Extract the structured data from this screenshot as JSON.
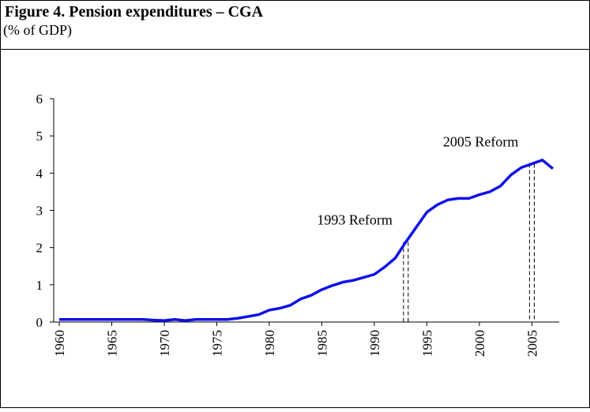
{
  "chart_data": {
    "type": "line",
    "title": "Figure 4. Pension expenditures – CGA",
    "subtitle": "(% of GDP)",
    "x": [
      1960,
      1961,
      1962,
      1963,
      1964,
      1965,
      1966,
      1967,
      1968,
      1969,
      1970,
      1971,
      1972,
      1973,
      1974,
      1975,
      1976,
      1977,
      1978,
      1979,
      1980,
      1981,
      1982,
      1983,
      1984,
      1985,
      1986,
      1987,
      1988,
      1989,
      1990,
      1991,
      1992,
      1993,
      1994,
      1995,
      1996,
      1997,
      1998,
      1999,
      2000,
      2001,
      2002,
      2003,
      2004,
      2005,
      2006,
      2007
    ],
    "series": [
      {
        "name": "Pension expenditures",
        "color": "#1010e8",
        "values": [
          0.07,
          0.07,
          0.07,
          0.07,
          0.07,
          0.07,
          0.07,
          0.07,
          0.07,
          0.05,
          0.04,
          0.07,
          0.04,
          0.07,
          0.07,
          0.07,
          0.07,
          0.1,
          0.15,
          0.2,
          0.32,
          0.37,
          0.45,
          0.62,
          0.72,
          0.87,
          0.98,
          1.07,
          1.12,
          1.2,
          1.28,
          1.48,
          1.72,
          2.15,
          2.55,
          2.95,
          3.15,
          3.28,
          3.32,
          3.32,
          3.42,
          3.5,
          3.65,
          3.95,
          4.15,
          4.25,
          4.35,
          4.12
        ]
      }
    ],
    "xlim": [
      1960,
      2007
    ],
    "xticks": [
      1960,
      1965,
      1970,
      1975,
      1980,
      1985,
      1990,
      1995,
      2000,
      2005
    ],
    "ylim": [
      0,
      6
    ],
    "yticks": [
      0,
      1,
      2,
      3,
      4,
      5,
      6
    ],
    "annotations": [
      {
        "text": "1993 Reform",
        "x": 1993
      },
      {
        "text": "2005 Reform",
        "x": 2005
      }
    ]
  }
}
